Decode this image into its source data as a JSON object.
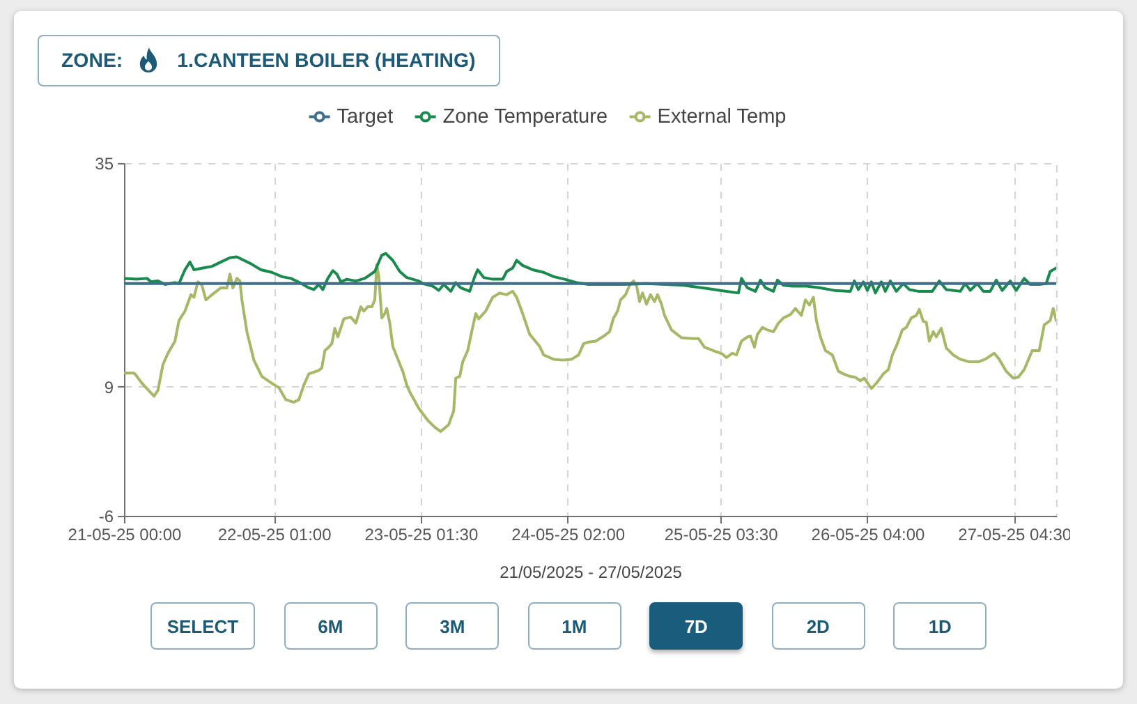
{
  "chart_data": {
    "type": "line",
    "title": "ZONE:",
    "subtitle": "1.CANTEEN BOILER (HEATING)",
    "xlabel": "21/05/2025 - 27/05/2025",
    "annotations": [
      "SELECT",
      "6M",
      "3M",
      "1M",
      "7D",
      "2D",
      "1D"
    ],
    "xlim": [
      "2025-05-21T00:00",
      "2025-05-27T11:30"
    ],
    "xticks": [
      {
        "value": "2025-05-21T00:00",
        "label": "21-05-25 00:00"
      },
      {
        "value": "2025-05-22T01:00",
        "label": "22-05-25 01:00"
      },
      {
        "value": "2025-05-23T01:30",
        "label": "23-05-25 01:30"
      },
      {
        "value": "2025-05-24T02:00",
        "label": "24-05-25 02:00"
      },
      {
        "value": "2025-05-25T03:30",
        "label": "25-05-25 03:30"
      },
      {
        "value": "2025-05-26T04:00",
        "label": "26-05-25 04:00"
      },
      {
        "value": "2025-05-27T04:30",
        "label": "27-05-25 04:30"
      }
    ],
    "ylim": [
      -6,
      35
    ],
    "yticks": [
      -6,
      9,
      35
    ],
    "grid": true,
    "legend": "top",
    "line_style": "solid",
    "series": [
      {
        "name": "Target",
        "color": "#3e6e8c",
        "x": [
          "2025-05-21T00:00",
          "2025-05-27T11:30"
        ],
        "values": [
          21,
          21
        ]
      },
      {
        "name": "Zone Temperature",
        "color": "#178a4c",
        "x": [
          "2025-05-21T00:00",
          "2025-05-21T02:10",
          "2025-05-21T03:50",
          "2025-05-21T04:30",
          "2025-05-21T05:40",
          "2025-05-21T06:50",
          "2025-05-21T08:30",
          "2025-05-21T09:10",
          "2025-05-21T10:10",
          "2025-05-21T11:00",
          "2025-05-21T11:40",
          "2025-05-21T13:10",
          "2025-05-21T14:40",
          "2025-05-21T16:10",
          "2025-05-21T17:40",
          "2025-05-21T18:50",
          "2025-05-21T20:00",
          "2025-05-21T21:10",
          "2025-05-21T22:50",
          "2025-05-22T00:40",
          "2025-05-22T02:20",
          "2025-05-22T03:50",
          "2025-05-22T05:20",
          "2025-05-22T06:50",
          "2025-05-22T07:40",
          "2025-05-22T08:30",
          "2025-05-22T09:10",
          "2025-05-22T10:00",
          "2025-05-22T10:50",
          "2025-05-22T11:30",
          "2025-05-22T12:10",
          "2025-05-22T13:10",
          "2025-05-22T14:40",
          "2025-05-22T16:10",
          "2025-05-22T17:50",
          "2025-05-22T19:00",
          "2025-05-22T19:40",
          "2025-05-22T20:50",
          "2025-05-22T22:00",
          "2025-05-22T23:10",
          "2025-05-23T01:10",
          "2025-05-23T01:50",
          "2025-05-23T03:30",
          "2025-05-23T04:30",
          "2025-05-23T05:20",
          "2025-05-23T06:30",
          "2025-05-23T07:20",
          "2025-05-23T08:10",
          "2025-05-23T09:40",
          "2025-05-23T10:30",
          "2025-05-23T11:00",
          "2025-05-23T12:00",
          "2025-05-23T13:30",
          "2025-05-23T15:10",
          "2025-05-23T15:50",
          "2025-05-23T16:50",
          "2025-05-23T17:30",
          "2025-05-23T18:30",
          "2025-05-23T20:10",
          "2025-05-23T22:00",
          "2025-05-23T23:40",
          "2025-05-24T01:30",
          "2025-05-24T03:30",
          "2025-05-24T05:30",
          "2025-05-24T11:20",
          "2025-05-24T15:10",
          "2025-05-24T18:10",
          "2025-05-24T21:20",
          "2025-05-25T00:30",
          "2025-05-25T03:30",
          "2025-05-25T06:30",
          "2025-05-25T07:00",
          "2025-05-25T08:00",
          "2025-05-25T09:20",
          "2025-05-25T10:10",
          "2025-05-25T11:00",
          "2025-05-25T12:20",
          "2025-05-25T13:00",
          "2025-05-25T14:00",
          "2025-05-25T15:30",
          "2025-05-25T17:50",
          "2025-05-25T20:10",
          "2025-05-25T22:30",
          "2025-05-26T01:10",
          "2025-05-26T01:50",
          "2025-05-26T02:30",
          "2025-05-26T03:20",
          "2025-05-26T04:00",
          "2025-05-26T04:40",
          "2025-05-26T05:20",
          "2025-05-26T06:20",
          "2025-05-26T07:00",
          "2025-05-26T07:50",
          "2025-05-26T08:50",
          "2025-05-26T10:00",
          "2025-05-26T11:00",
          "2025-05-26T12:30",
          "2025-05-26T14:50",
          "2025-05-26T16:00",
          "2025-05-26T17:10",
          "2025-05-26T19:30",
          "2025-05-26T20:20",
          "2025-05-26T21:10",
          "2025-05-26T22:20",
          "2025-05-26T23:20",
          "2025-05-27T00:30",
          "2025-05-27T01:30",
          "2025-05-27T02:30",
          "2025-05-27T03:50",
          "2025-05-27T04:50",
          "2025-05-27T06:10",
          "2025-05-27T07:10",
          "2025-05-27T08:40",
          "2025-05-27T09:50",
          "2025-05-27T10:30",
          "2025-05-27T11:30"
        ],
        "values": [
          21.6,
          21.5,
          21.6,
          21.2,
          21.3,
          20.9,
          21.1,
          21.0,
          22.6,
          23.5,
          22.6,
          22.8,
          23.0,
          23.5,
          24.0,
          24.1,
          23.7,
          23.3,
          22.6,
          22.3,
          21.8,
          21.6,
          21.1,
          20.5,
          20.3,
          20.9,
          20.3,
          21.6,
          22.5,
          22.1,
          21.2,
          21.5,
          21.3,
          21.6,
          22.4,
          24.3,
          24.5,
          23.7,
          22.4,
          21.7,
          21.3,
          21.0,
          20.7,
          20.2,
          20.9,
          20.1,
          21.1,
          20.5,
          20.1,
          21.8,
          22.6,
          21.7,
          21.5,
          21.5,
          22.4,
          22.8,
          23.7,
          23.1,
          22.6,
          22.3,
          21.8,
          21.5,
          21.1,
          20.9,
          20.9,
          21.0,
          20.9,
          20.8,
          20.5,
          20.2,
          19.9,
          21.6,
          20.5,
          20.1,
          21.4,
          20.5,
          20.1,
          21.4,
          20.8,
          20.7,
          20.7,
          20.5,
          20.2,
          20.1,
          21.3,
          20.3,
          21.2,
          20.2,
          21.2,
          19.9,
          21.2,
          20.1,
          21.3,
          20.1,
          21.0,
          20.3,
          20.1,
          20.1,
          21.3,
          20.3,
          20.1,
          21.0,
          20.2,
          21.0,
          20.1,
          20.1,
          21.4,
          20.2,
          21.3,
          20.2,
          21.6,
          20.9,
          20.9,
          21.0,
          22.4,
          22.8
        ]
      },
      {
        "name": "External Temp",
        "color": "#a4b866",
        "x": [
          "2025-05-21T00:00",
          "2025-05-21T01:30",
          "2025-05-21T01:50",
          "2025-05-21T03:00",
          "2025-05-21T05:00",
          "2025-05-21T05:40",
          "2025-05-21T06:30",
          "2025-05-21T07:20",
          "2025-05-21T08:30",
          "2025-05-21T09:10",
          "2025-05-21T10:10",
          "2025-05-21T11:10",
          "2025-05-21T11:40",
          "2025-05-21T12:20",
          "2025-05-21T13:00",
          "2025-05-21T13:40",
          "2025-05-21T14:40",
          "2025-05-21T16:10",
          "2025-05-21T17:10",
          "2025-05-21T17:40",
          "2025-05-21T18:10",
          "2025-05-21T18:50",
          "2025-05-21T19:20",
          "2025-05-21T19:40",
          "2025-05-21T20:30",
          "2025-05-21T21:40",
          "2025-05-21T23:00",
          "2025-05-22T00:40",
          "2025-05-22T01:50",
          "2025-05-22T03:00",
          "2025-05-22T04:20",
          "2025-05-22T05:10",
          "2025-05-22T06:00",
          "2025-05-22T06:50",
          "2025-05-22T08:30",
          "2025-05-22T09:00",
          "2025-05-22T09:30",
          "2025-05-22T10:00",
          "2025-05-22T10:40",
          "2025-05-22T11:10",
          "2025-05-22T11:40",
          "2025-05-22T12:40",
          "2025-05-22T13:50",
          "2025-05-22T14:40",
          "2025-05-22T15:30",
          "2025-05-22T16:00",
          "2025-05-22T16:40",
          "2025-05-22T17:20",
          "2025-05-22T17:50",
          "2025-05-22T18:10",
          "2025-05-22T18:30",
          "2025-05-22T19:00",
          "2025-05-22T19:30",
          "2025-05-22T19:50",
          "2025-05-22T20:20",
          "2025-05-22T20:50",
          "2025-05-22T22:30",
          "2025-05-22T23:10",
          "2025-05-22T23:40",
          "2025-05-23T01:10",
          "2025-05-23T02:40",
          "2025-05-23T03:50",
          "2025-05-23T04:50",
          "2025-05-23T06:10",
          "2025-05-23T07:00",
          "2025-05-23T07:20",
          "2025-05-23T08:00",
          "2025-05-23T08:30",
          "2025-05-23T09:20",
          "2025-05-23T10:00",
          "2025-05-23T10:40",
          "2025-05-23T11:10",
          "2025-05-23T12:20",
          "2025-05-23T13:30",
          "2025-05-23T14:40",
          "2025-05-23T15:50",
          "2025-05-23T16:50",
          "2025-05-23T17:30",
          "2025-05-23T18:30",
          "2025-05-23T19:40",
          "2025-05-23T21:20",
          "2025-05-23T22:00",
          "2025-05-23T23:40",
          "2025-05-24T01:10",
          "2025-05-24T02:40",
          "2025-05-24T03:50",
          "2025-05-24T04:40",
          "2025-05-24T05:30",
          "2025-05-24T06:40",
          "2025-05-24T07:50",
          "2025-05-24T09:00",
          "2025-05-24T09:40",
          "2025-05-24T10:20",
          "2025-05-24T10:50",
          "2025-05-24T11:40",
          "2025-05-24T12:20",
          "2025-05-24T13:00",
          "2025-05-24T13:30",
          "2025-05-24T14:00",
          "2025-05-24T14:30",
          "2025-05-24T15:10",
          "2025-05-24T15:50",
          "2025-05-24T16:30",
          "2025-05-24T17:00",
          "2025-05-24T17:40",
          "2025-05-24T18:10",
          "2025-05-24T19:20",
          "2025-05-24T21:00",
          "2025-05-24T22:50",
          "2025-05-24T23:50",
          "2025-05-25T00:50",
          "2025-05-25T02:20",
          "2025-05-25T03:50",
          "2025-05-25T04:30",
          "2025-05-25T05:30",
          "2025-05-25T06:10",
          "2025-05-25T07:00",
          "2025-05-25T08:00",
          "2025-05-25T08:30",
          "2025-05-25T09:10",
          "2025-05-25T09:40",
          "2025-05-25T10:30",
          "2025-05-25T11:20",
          "2025-05-25T12:20",
          "2025-05-25T13:10",
          "2025-05-25T14:00",
          "2025-05-25T15:10",
          "2025-05-25T16:00",
          "2025-05-25T17:00",
          "2025-05-25T17:40",
          "2025-05-25T18:20",
          "2025-05-25T19:00",
          "2025-05-25T19:30",
          "2025-05-25T20:10",
          "2025-05-25T21:00",
          "2025-05-25T22:10",
          "2025-05-25T23:10",
          "2025-05-26T00:00",
          "2025-05-26T01:10",
          "2025-05-26T02:00",
          "2025-05-26T02:50",
          "2025-05-26T03:30",
          "2025-05-26T04:40",
          "2025-05-26T05:30",
          "2025-05-26T06:40",
          "2025-05-26T07:30",
          "2025-05-26T08:10",
          "2025-05-26T09:00",
          "2025-05-26T09:50",
          "2025-05-26T10:30",
          "2025-05-26T11:20",
          "2025-05-26T12:10",
          "2025-05-26T12:40",
          "2025-05-26T13:20",
          "2025-05-26T13:50",
          "2025-05-26T14:20",
          "2025-05-26T15:00",
          "2025-05-26T15:30",
          "2025-05-26T16:20",
          "2025-05-26T17:10",
          "2025-05-26T18:20",
          "2025-05-26T19:30",
          "2025-05-26T21:00",
          "2025-05-26T22:30",
          "2025-05-26T23:40",
          "2025-05-27T01:10",
          "2025-05-27T02:00",
          "2025-05-27T03:10",
          "2025-05-27T04:20",
          "2025-05-27T05:10",
          "2025-05-27T06:10",
          "2025-05-27T07:30",
          "2025-05-27T08:40",
          "2025-05-27T09:30",
          "2025-05-27T10:30",
          "2025-05-27T11:00",
          "2025-05-27T11:30"
        ],
        "values": [
          10.6,
          10.6,
          10.5,
          9.4,
          7.9,
          8.6,
          11.6,
          12.9,
          14.3,
          16.7,
          17.8,
          19.7,
          19.4,
          21.2,
          20.8,
          19.1,
          19.7,
          20.5,
          20.5,
          22.1,
          20.5,
          21.6,
          21.3,
          19.1,
          15.4,
          12.1,
          10.2,
          9.4,
          8.9,
          7.5,
          7.2,
          7.5,
          9.2,
          10.5,
          10.9,
          11.2,
          13.2,
          13.5,
          14.0,
          15.8,
          14.8,
          16.9,
          17.1,
          16.4,
          18.3,
          17.8,
          18.3,
          18.3,
          19.1,
          23.2,
          21.8,
          17.0,
          17.5,
          18.1,
          16.4,
          13.7,
          10.8,
          9.2,
          8.4,
          6.5,
          5.1,
          4.3,
          3.8,
          4.6,
          6.2,
          10.0,
          10.2,
          11.9,
          13.2,
          15.4,
          17.5,
          16.9,
          17.8,
          19.4,
          19.9,
          19.7,
          20.1,
          19.4,
          17.5,
          15.1,
          13.7,
          12.7,
          12.2,
          12.1,
          12.2,
          12.7,
          14.0,
          14.2,
          14.3,
          14.8,
          15.4,
          17.0,
          17.8,
          19.1,
          19.7,
          20.8,
          21.3,
          20.8,
          18.9,
          19.9,
          18.6,
          19.7,
          18.9,
          19.7,
          18.6,
          17.3,
          15.6,
          14.7,
          14.6,
          14.6,
          13.6,
          13.2,
          12.8,
          12.4,
          12.9,
          12.7,
          14.3,
          14.8,
          14.9,
          13.6,
          15.1,
          15.9,
          15.6,
          15.4,
          16.4,
          17.0,
          17.4,
          18.1,
          17.3,
          19.1,
          18.5,
          19.4,
          16.7,
          14.8,
          13.2,
          12.7,
          10.8,
          10.5,
          10.2,
          10.1,
          9.7,
          10.0,
          8.8,
          9.4,
          10.5,
          11.0,
          12.7,
          14.0,
          15.6,
          15.9,
          17.0,
          17.3,
          18.0,
          16.6,
          16.5,
          14.3,
          15.4,
          14.8,
          15.8,
          13.5,
          12.7,
          12.2,
          11.9,
          11.9,
          12.2,
          12.9,
          12.2,
          10.8,
          10.0,
          10.1,
          11.0,
          13.2,
          13.2,
          16.2,
          16.7,
          18.1,
          16.7
        ]
      }
    ]
  }
}
